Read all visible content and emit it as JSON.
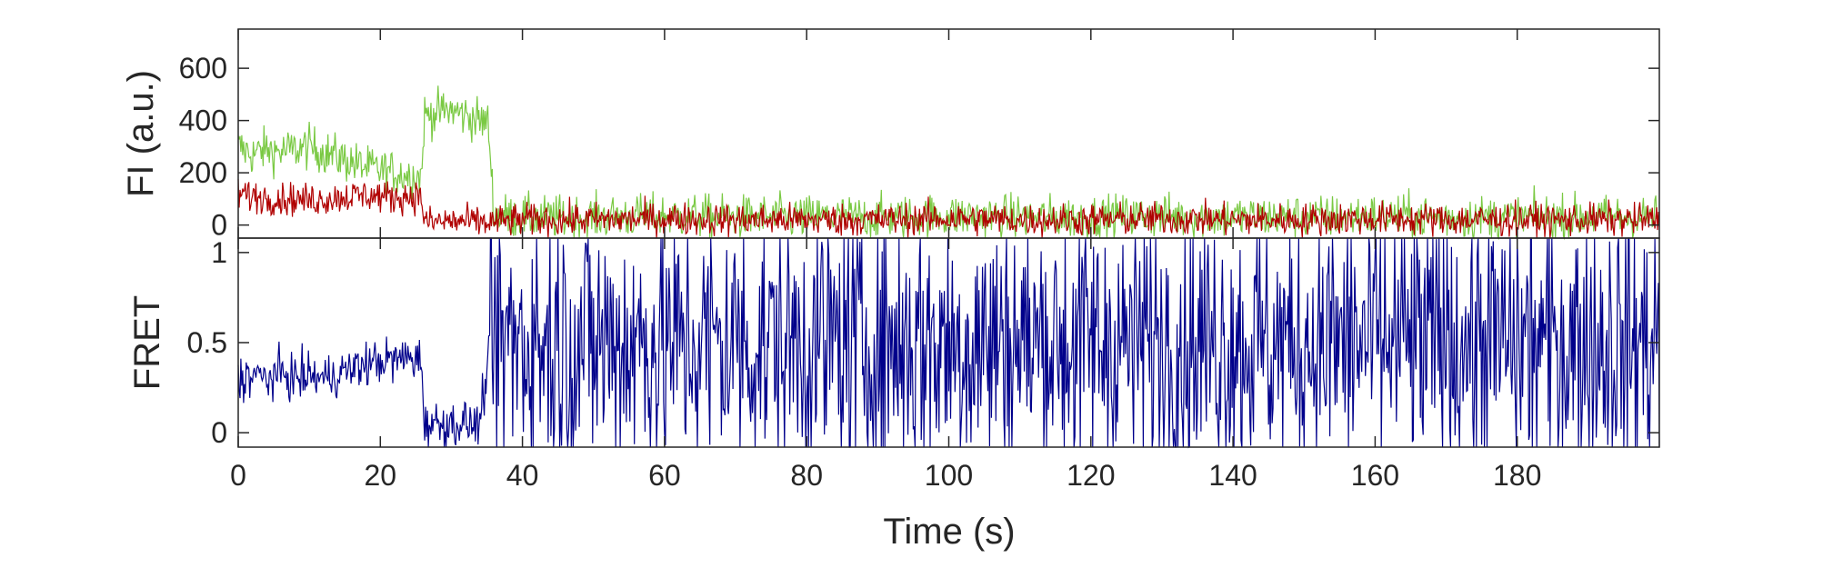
{
  "chart_data": [
    {
      "type": "line",
      "ylabel": "FI (a.u.)",
      "xlabel": "",
      "xlim": [
        0,
        200
      ],
      "ylim": [
        -50,
        750
      ],
      "xticks": [
        0,
        20,
        40,
        60,
        80,
        100,
        120,
        140,
        160,
        180
      ],
      "yticks": [
        0,
        200,
        400,
        600
      ],
      "grid": false,
      "colors": {
        "donor": "#7ac943",
        "acceptor": "#b00000"
      },
      "series": [
        {
          "key": "donor",
          "x": [
            0,
            2,
            4,
            6,
            8,
            10,
            12,
            14,
            16,
            18,
            20,
            22,
            24,
            25.8,
            26.2,
            28,
            30,
            32,
            34,
            35.2,
            36,
            40,
            50,
            60,
            70,
            80,
            90,
            100,
            110,
            120,
            130,
            140,
            150,
            160,
            170,
            180,
            190,
            200
          ],
          "y": [
            300,
            270,
            290,
            280,
            290,
            300,
            280,
            260,
            240,
            220,
            210,
            200,
            190,
            185,
            420,
            430,
            440,
            420,
            400,
            390,
            40,
            30,
            30,
            35,
            30,
            30,
            30,
            35,
            30,
            30,
            35,
            30,
            30,
            35,
            30,
            30,
            30,
            30
          ]
        },
        {
          "key": "acceptor",
          "x": [
            0,
            2,
            4,
            6,
            8,
            10,
            12,
            14,
            16,
            18,
            20,
            22,
            24,
            25.8,
            26.2,
            30,
            35,
            40,
            50,
            60,
            70,
            80,
            90,
            100,
            110,
            120,
            130,
            140,
            150,
            160,
            170,
            180,
            190,
            200
          ],
          "y": [
            120,
            110,
            105,
            100,
            100,
            95,
            100,
            105,
            110,
            115,
            110,
            105,
            110,
            110,
            10,
            15,
            10,
            20,
            20,
            25,
            20,
            20,
            20,
            25,
            20,
            20,
            25,
            20,
            20,
            25,
            20,
            20,
            20,
            20
          ]
        }
      ]
    },
    {
      "type": "line",
      "ylabel": "FRET",
      "xlabel": "Time (s)",
      "xlim": [
        0,
        200
      ],
      "ylim": [
        -0.08,
        1.08
      ],
      "xticks": [
        0,
        20,
        40,
        60,
        80,
        100,
        120,
        140,
        160,
        180
      ],
      "yticks": [
        0,
        0.5,
        1
      ],
      "ytick_labels": [
        "0",
        "0.5",
        "1"
      ],
      "grid": false,
      "colors": {
        "fret": "#00008b"
      },
      "series": [
        {
          "key": "fret",
          "x": [
            0,
            2,
            4,
            6,
            8,
            10,
            12,
            14,
            16,
            18,
            20,
            22,
            24,
            25.8,
            26.2,
            30,
            34,
            35.5,
            40,
            60,
            80,
            100,
            120,
            140,
            160,
            180,
            200
          ],
          "y": [
            0.3,
            0.32,
            0.3,
            0.33,
            0.3,
            0.32,
            0.3,
            0.33,
            0.35,
            0.38,
            0.4,
            0.4,
            0.42,
            0.4,
            0.05,
            0.05,
            0.05,
            0.5,
            0.5,
            0.5,
            0.5,
            0.5,
            0.5,
            0.5,
            0.5,
            0.5,
            0.5
          ]
        }
      ]
    }
  ]
}
